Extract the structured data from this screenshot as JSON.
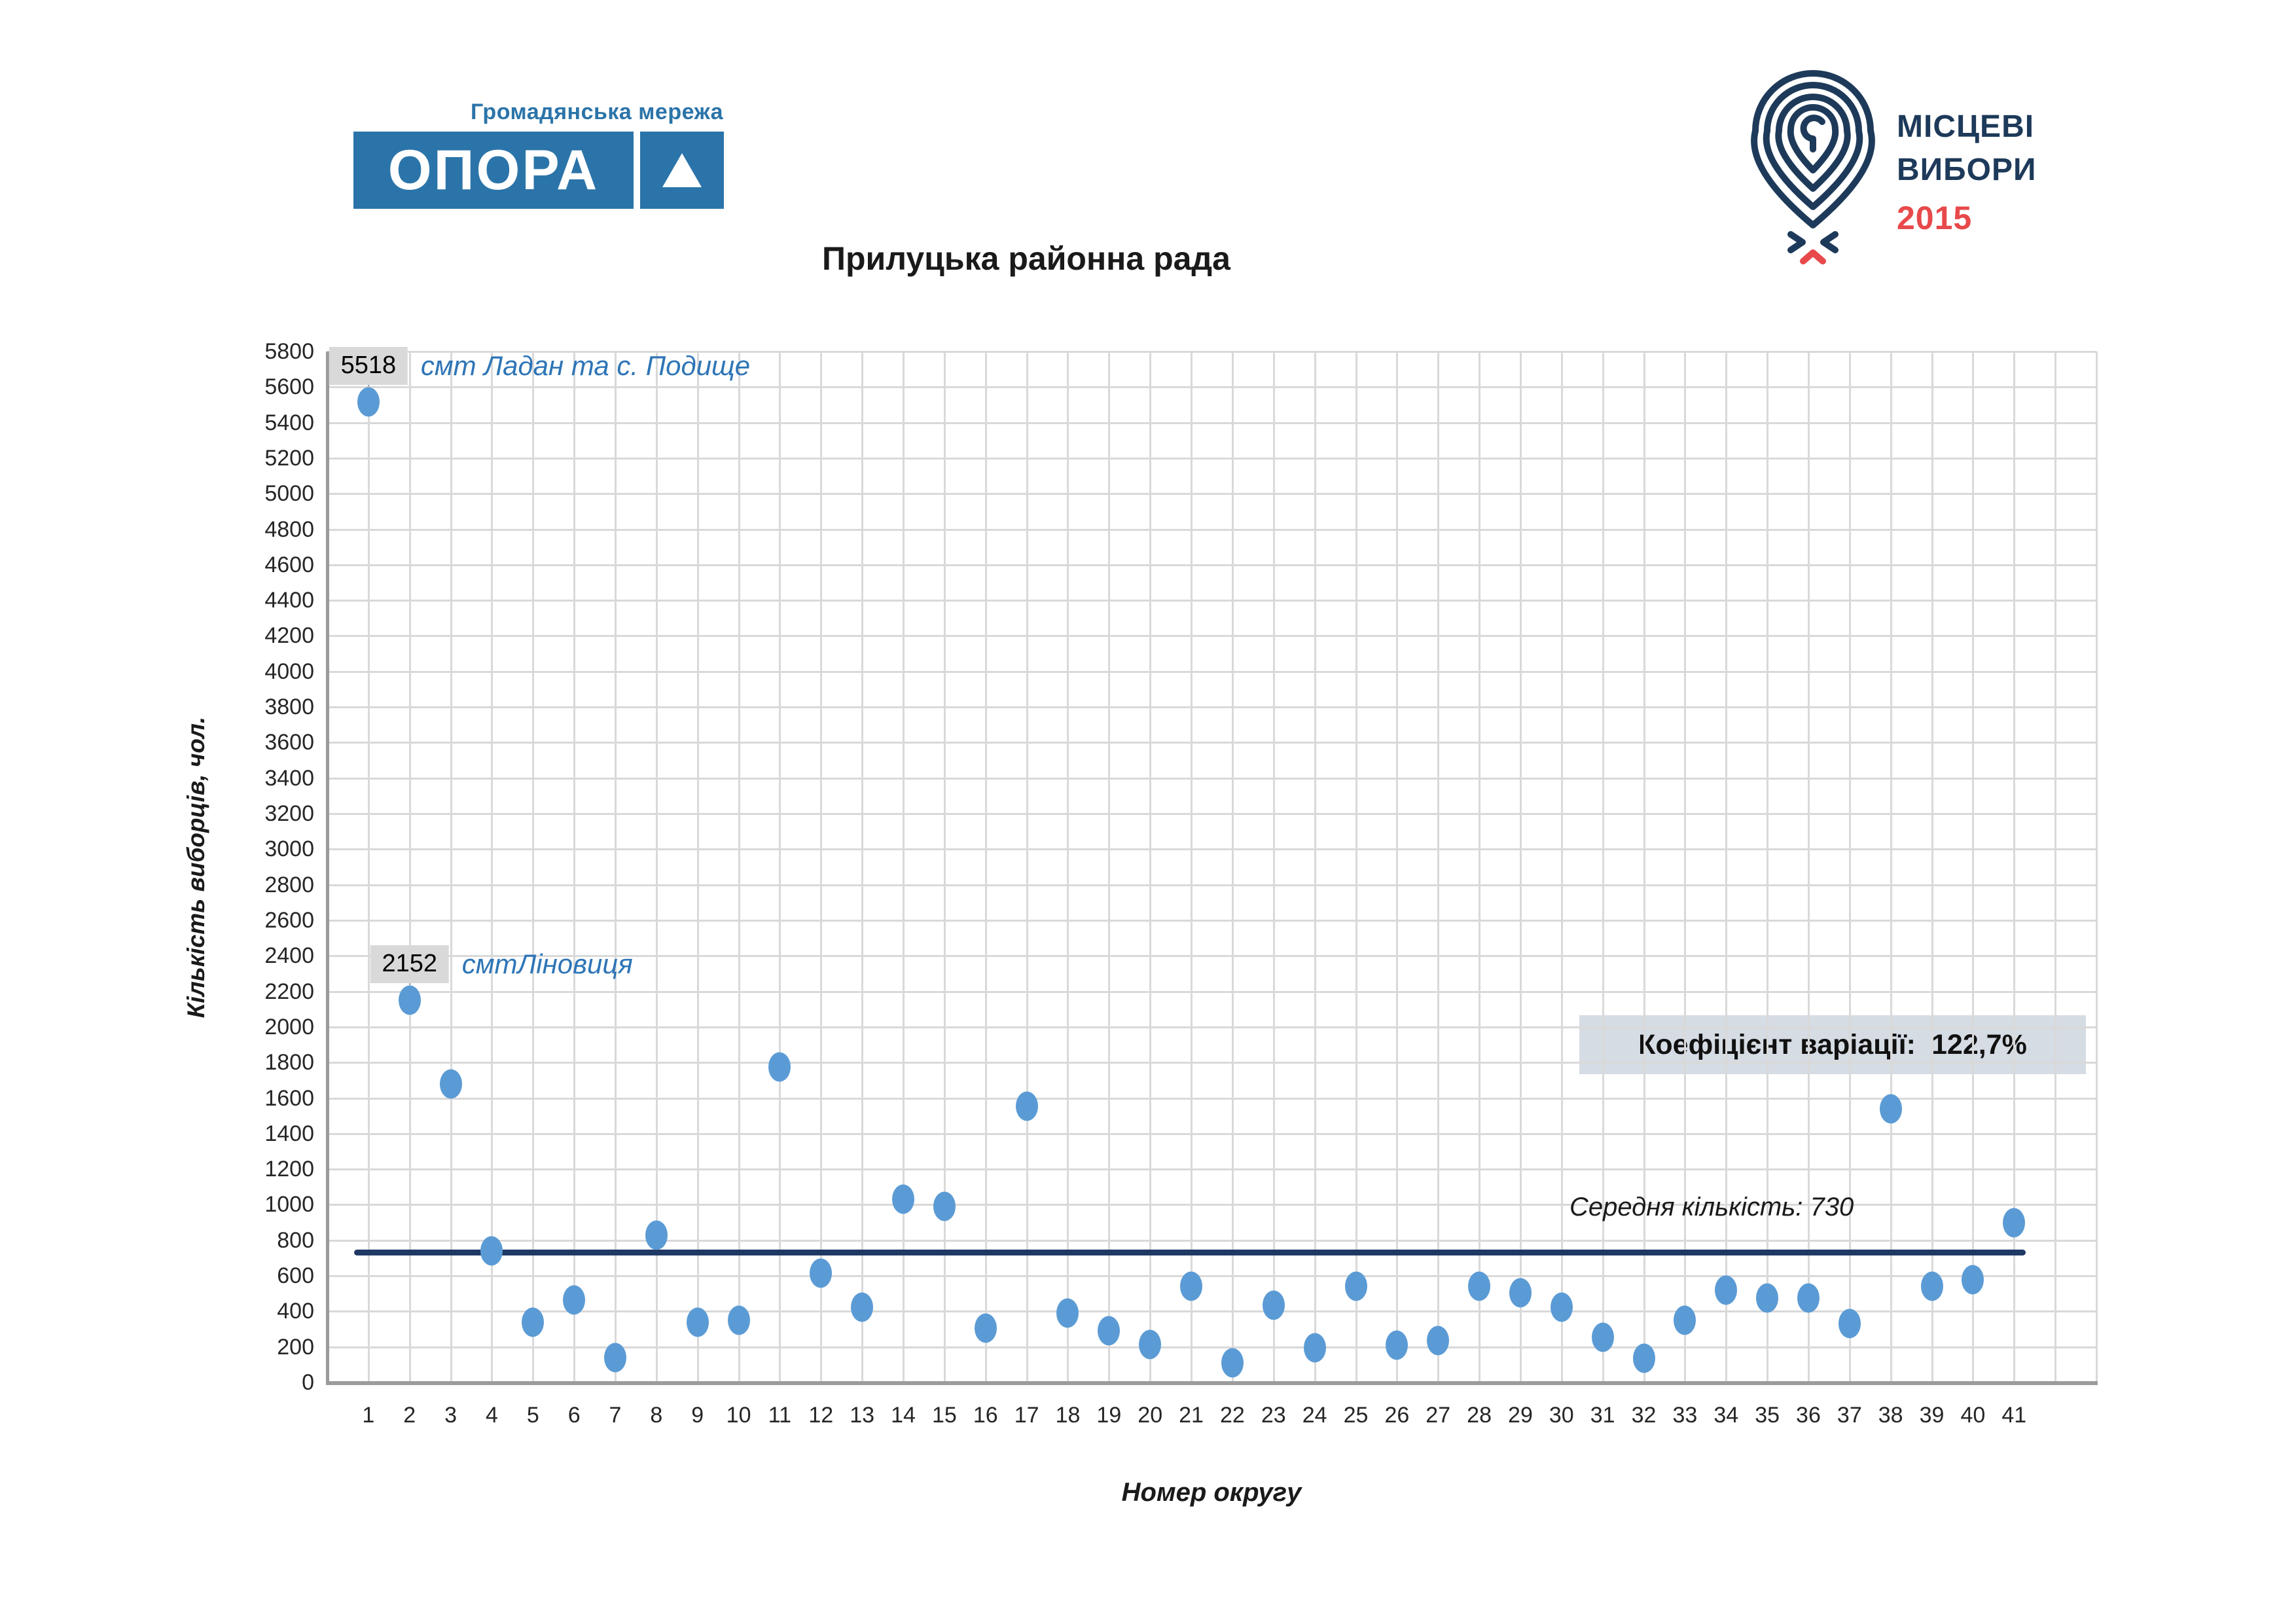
{
  "logo_opora": {
    "tagline": "Громадянська мережа",
    "wordmark": "ОПОРА"
  },
  "logo_elections": {
    "line1": "МІСЦЕВІ",
    "line2": "ВИБОРИ",
    "year": "2015"
  },
  "title": "Прилуцька районна рада",
  "colors": {
    "opora_blue": "#2B74A9",
    "logo_navy": "#1E3A5A",
    "logo_red": "#E8494A",
    "point_blue": "#5B9BD5",
    "mean_navy": "#1F3864",
    "annotation_blue": "#2E75B6",
    "callout_box_bg": "#D9D9D9",
    "stat_box_bg": "#D6DCE4",
    "gridline_gray": "#D9D9D9",
    "axis_gray": "#9B9B9B"
  },
  "chart_data": {
    "type": "scatter",
    "title": "Прилуцька районна рада",
    "xlabel": "Номер округу",
    "ylabel": "Кількість виборців, чол.",
    "xlim": [
      0,
      43
    ],
    "ylim": [
      0,
      5800
    ],
    "ytick_step": 200,
    "grid": true,
    "x": [
      1,
      2,
      3,
      4,
      5,
      6,
      7,
      8,
      9,
      10,
      11,
      12,
      13,
      14,
      15,
      16,
      17,
      18,
      19,
      20,
      21,
      22,
      23,
      24,
      25,
      26,
      27,
      28,
      29,
      30,
      31,
      32,
      33,
      34,
      35,
      36,
      37,
      38,
      39,
      40,
      41
    ],
    "values": [
      5518,
      2152,
      1680,
      740,
      340,
      465,
      140,
      830,
      340,
      350,
      1775,
      615,
      425,
      1030,
      990,
      305,
      1555,
      390,
      290,
      215,
      540,
      110,
      435,
      195,
      540,
      210,
      235,
      540,
      505,
      425,
      255,
      135,
      350,
      520,
      475,
      475,
      330,
      1540,
      540,
      580,
      900
    ],
    "callouts": [
      {
        "x": 1,
        "value_label": "5518",
        "note": "смт Ладан та с. Подище"
      },
      {
        "x": 2,
        "value_label": "2152",
        "note": "смтЛіновиця"
      }
    ],
    "mean_line": {
      "value": 730,
      "label": "Середня кількість: 730"
    },
    "stat_box": {
      "label": "Коефіцієнт варіації:",
      "value": "122,7%"
    }
  }
}
